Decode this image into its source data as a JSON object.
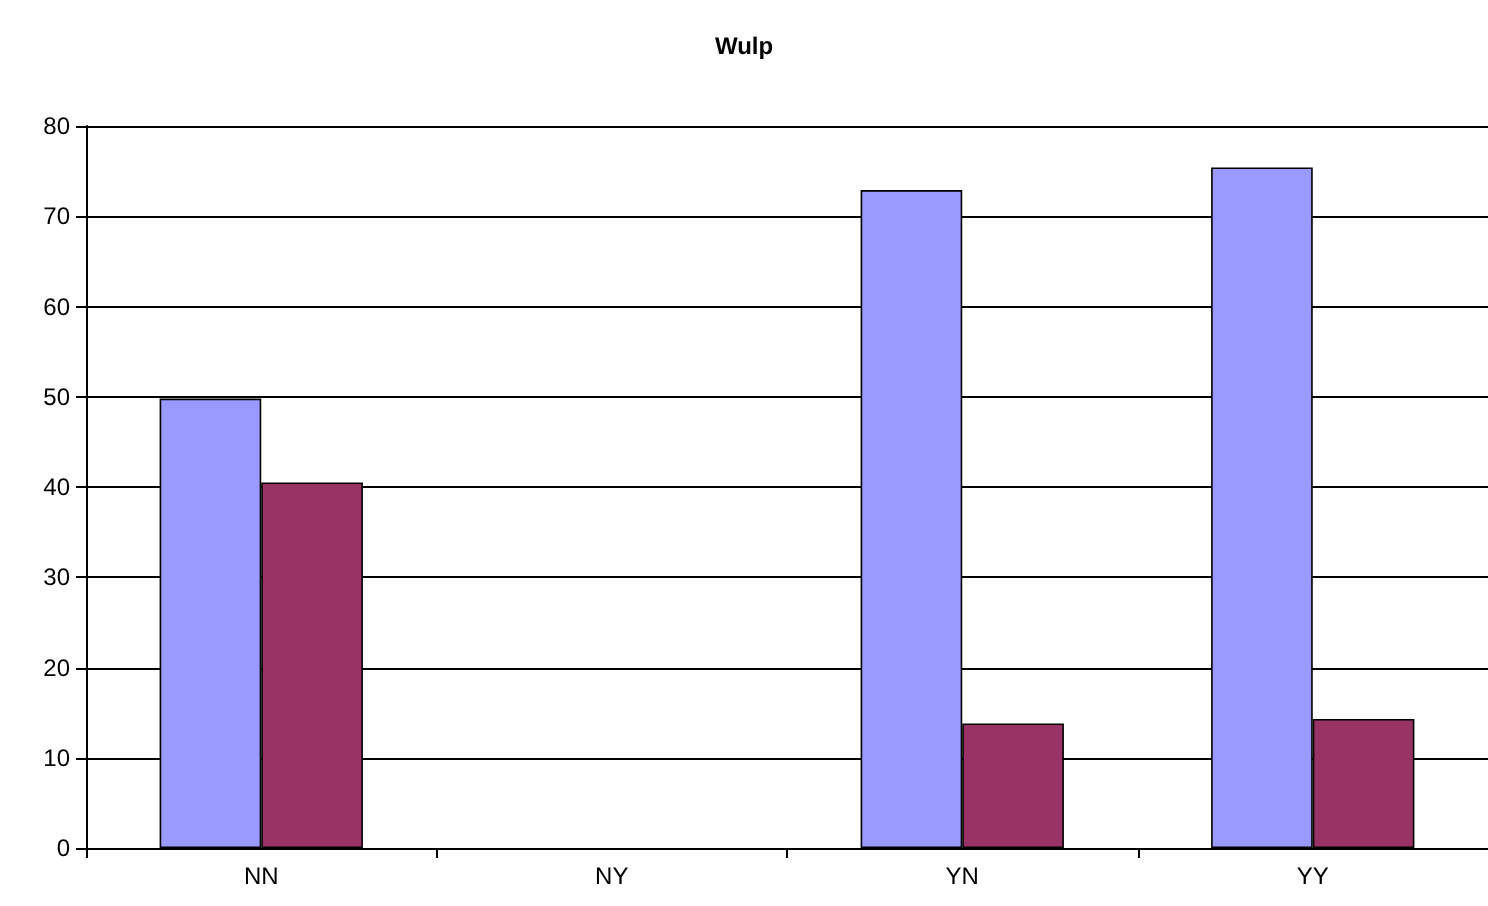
{
  "chart_data": {
    "type": "bar",
    "title": "Wulp",
    "categories": [
      "NN",
      "NY",
      "YN",
      "YY"
    ],
    "series": [
      {
        "color": "#9999ff",
        "values": [
          49.8,
          null,
          72.9,
          75.4
        ]
      },
      {
        "color": "#993366",
        "values": [
          40.5,
          null,
          13.8,
          14.3
        ]
      }
    ],
    "ylim": [
      0,
      80
    ],
    "yticks": [
      0,
      10,
      20,
      30,
      40,
      50,
      60,
      70,
      80
    ],
    "grid": "y"
  }
}
